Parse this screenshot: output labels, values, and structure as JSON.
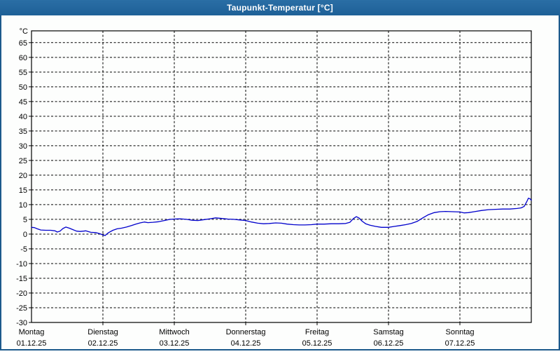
{
  "window": {
    "title": "Taupunkt-Temperatur [°C]",
    "titlebar_color": "#2169a0",
    "border_color": "#1d5a8c",
    "content_background": "#fdfefd"
  },
  "chart_data": {
    "type": "line",
    "title": "Taupunkt-Temperatur [°C]",
    "y_unit_label": "°C",
    "ylabel": "",
    "xlabel": "",
    "ylim": [
      -30,
      69
    ],
    "y_ticks": [
      65,
      60,
      55,
      50,
      45,
      40,
      35,
      30,
      25,
      20,
      15,
      10,
      5,
      0,
      -5,
      -10,
      -15,
      -20,
      -25,
      -30
    ],
    "grid": "dashed",
    "grid_color": "#000000",
    "legend_position": "none",
    "x_days": [
      {
        "label": "Montag",
        "date": "01.12.25"
      },
      {
        "label": "Dienstag",
        "date": "02.12.25"
      },
      {
        "label": "Mittwoch",
        "date": "03.12.25"
      },
      {
        "label": "Donnerstag",
        "date": "04.12.25"
      },
      {
        "label": "Freitag",
        "date": "05.12.25"
      },
      {
        "label": "Samstag",
        "date": "06.12.25"
      },
      {
        "label": "Sonntag",
        "date": "07.12.25"
      }
    ],
    "series": [
      {
        "name": "Taupunkt-Temperatur",
        "color": "#0000cc",
        "points": [
          [
            0.0,
            2.3
          ],
          [
            0.04,
            2.2
          ],
          [
            0.08,
            1.8
          ],
          [
            0.13,
            1.4
          ],
          [
            0.2,
            1.3
          ],
          [
            0.27,
            1.3
          ],
          [
            0.33,
            1.1
          ],
          [
            0.36,
            0.7
          ],
          [
            0.4,
            1.0
          ],
          [
            0.44,
            1.9
          ],
          [
            0.48,
            2.4
          ],
          [
            0.53,
            2.0
          ],
          [
            0.58,
            1.5
          ],
          [
            0.63,
            1.0
          ],
          [
            0.68,
            0.9
          ],
          [
            0.73,
            1.0
          ],
          [
            0.76,
            1.1
          ],
          [
            0.83,
            0.6
          ],
          [
            0.9,
            0.5
          ],
          [
            0.96,
            0.1
          ],
          [
            1.0,
            -0.3
          ],
          [
            1.03,
            -0.5
          ],
          [
            1.08,
            0.5
          ],
          [
            1.14,
            1.3
          ],
          [
            1.2,
            1.8
          ],
          [
            1.26,
            2.0
          ],
          [
            1.33,
            2.4
          ],
          [
            1.4,
            2.9
          ],
          [
            1.46,
            3.4
          ],
          [
            1.52,
            3.8
          ],
          [
            1.58,
            4.1
          ],
          [
            1.63,
            3.9
          ],
          [
            1.7,
            4.0
          ],
          [
            1.78,
            4.2
          ],
          [
            1.86,
            4.6
          ],
          [
            1.94,
            5.0
          ],
          [
            2.0,
            5.1
          ],
          [
            2.08,
            5.2
          ],
          [
            2.17,
            5.0
          ],
          [
            2.25,
            4.7
          ],
          [
            2.33,
            4.6
          ],
          [
            2.42,
            4.9
          ],
          [
            2.5,
            5.2
          ],
          [
            2.58,
            5.5
          ],
          [
            2.67,
            5.3
          ],
          [
            2.75,
            5.1
          ],
          [
            2.83,
            5.0
          ],
          [
            2.92,
            4.8
          ],
          [
            3.0,
            4.6
          ],
          [
            3.08,
            4.1
          ],
          [
            3.17,
            3.7
          ],
          [
            3.25,
            3.5
          ],
          [
            3.33,
            3.6
          ],
          [
            3.42,
            3.8
          ],
          [
            3.5,
            3.7
          ],
          [
            3.58,
            3.4
          ],
          [
            3.67,
            3.2
          ],
          [
            3.75,
            3.1
          ],
          [
            3.83,
            3.1
          ],
          [
            3.92,
            3.2
          ],
          [
            4.0,
            3.4
          ],
          [
            4.1,
            3.4
          ],
          [
            4.2,
            3.5
          ],
          [
            4.3,
            3.5
          ],
          [
            4.4,
            3.6
          ],
          [
            4.46,
            4.0
          ],
          [
            4.51,
            5.3
          ],
          [
            4.55,
            5.9
          ],
          [
            4.59,
            5.4
          ],
          [
            4.63,
            4.4
          ],
          [
            4.68,
            3.5
          ],
          [
            4.74,
            3.0
          ],
          [
            4.82,
            2.6
          ],
          [
            4.9,
            2.3
          ],
          [
            4.96,
            2.3
          ],
          [
            5.0,
            2.3
          ],
          [
            5.08,
            2.6
          ],
          [
            5.16,
            2.9
          ],
          [
            5.24,
            3.2
          ],
          [
            5.32,
            3.6
          ],
          [
            5.4,
            4.3
          ],
          [
            5.48,
            5.5
          ],
          [
            5.56,
            6.6
          ],
          [
            5.64,
            7.3
          ],
          [
            5.72,
            7.6
          ],
          [
            5.8,
            7.7
          ],
          [
            5.9,
            7.6
          ],
          [
            6.0,
            7.5
          ],
          [
            6.06,
            7.2
          ],
          [
            6.12,
            7.3
          ],
          [
            6.2,
            7.6
          ],
          [
            6.3,
            8.0
          ],
          [
            6.4,
            8.3
          ],
          [
            6.5,
            8.4
          ],
          [
            6.6,
            8.5
          ],
          [
            6.7,
            8.5
          ],
          [
            6.8,
            8.7
          ],
          [
            6.86,
            8.9
          ],
          [
            6.9,
            9.4
          ],
          [
            6.94,
            11.2
          ],
          [
            6.96,
            12.2
          ],
          [
            6.98,
            12.0
          ],
          [
            7.0,
            11.5
          ]
        ]
      }
    ]
  }
}
